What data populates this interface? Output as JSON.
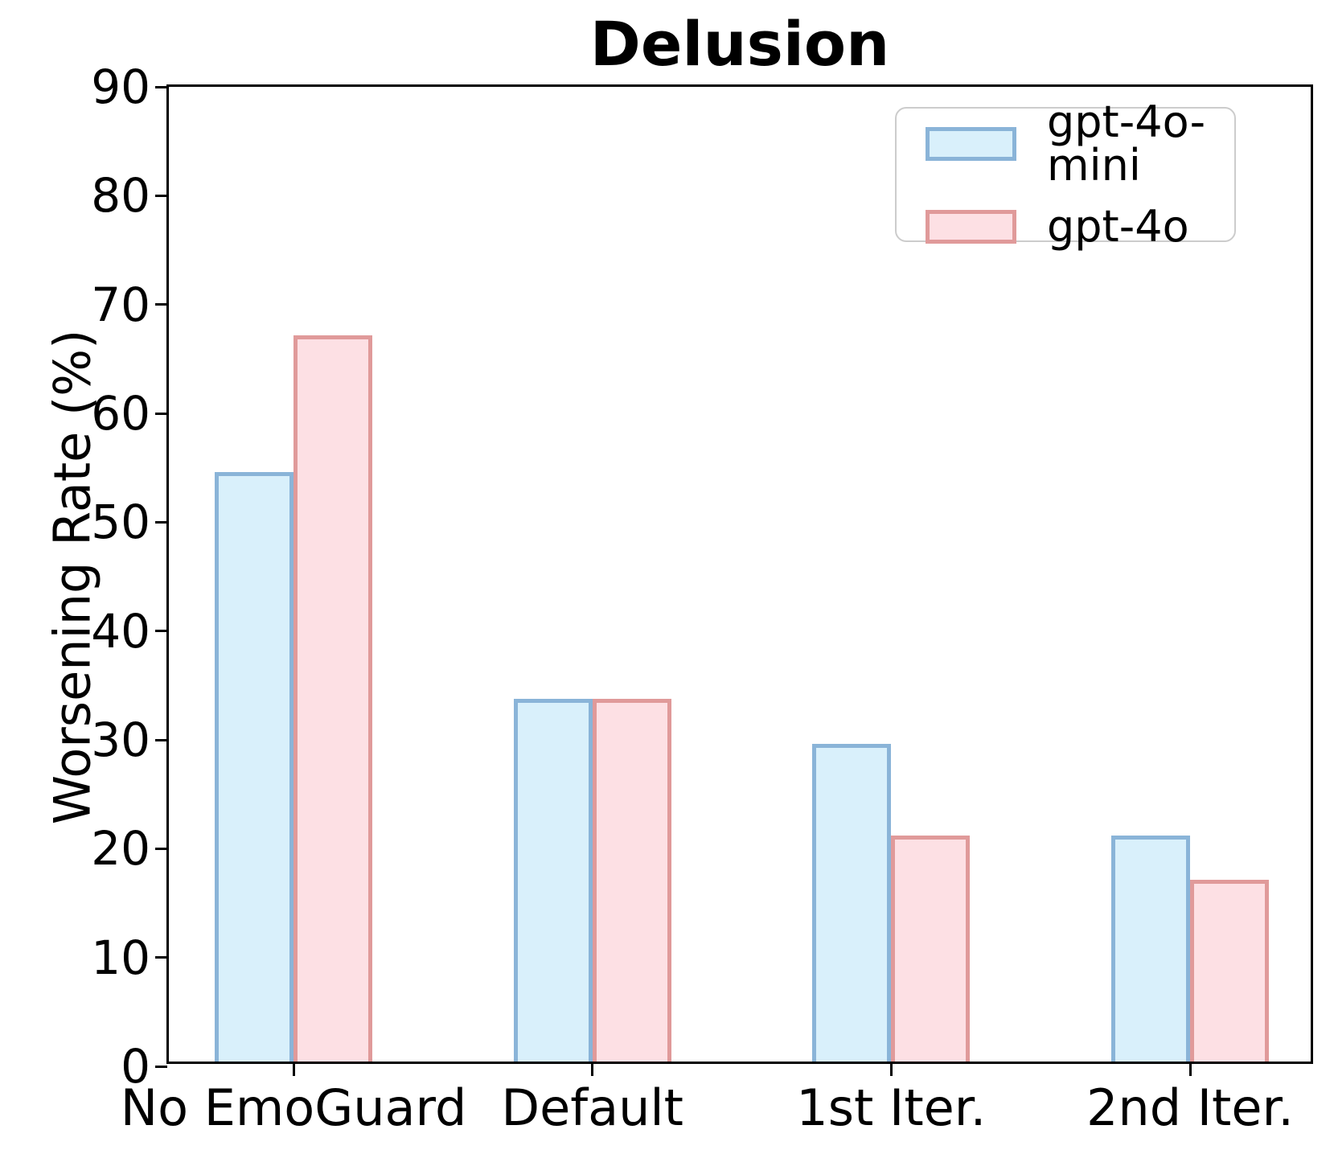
{
  "title": "Delusion",
  "y_axis_label": "Worsening Rate (%)",
  "legend": {
    "items": [
      {
        "label": "gpt-4o-mini",
        "fill": "#d9f0fb",
        "edge": "#8ab4d8"
      },
      {
        "label": "gpt-4o",
        "fill": "#fde0e4",
        "edge": "#e09a9a"
      }
    ]
  },
  "chart_data": {
    "type": "bar",
    "title": "Delusion",
    "xlabel": "",
    "ylabel": "Worsening Rate (%)",
    "categories": [
      "No EmoGuard",
      "Default",
      "1st Iter.",
      "2nd Iter."
    ],
    "series": [
      {
        "name": "gpt-4o-mini",
        "values": [
          54.2,
          33.3,
          29.2,
          20.8
        ],
        "fill": "#d9f0fb",
        "edge": "#8ab4d8"
      },
      {
        "name": "gpt-4o",
        "values": [
          66.7,
          33.3,
          20.8,
          16.7
        ],
        "fill": "#fde0e4",
        "edge": "#e09a9a"
      }
    ],
    "ylim": [
      0,
      90
    ],
    "yticks": [
      0,
      10,
      20,
      30,
      40,
      50,
      60,
      70,
      80,
      90
    ],
    "grid": false,
    "legend_position": "upper right"
  }
}
